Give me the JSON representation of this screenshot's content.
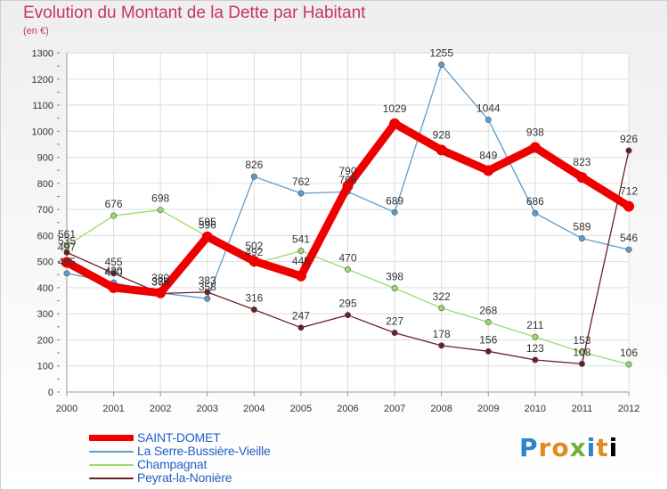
{
  "title": "Evolution du Montant de la Dette par Habitant",
  "subtitle": "(en €)",
  "logo": [
    "P",
    "r",
    "o",
    "x",
    "i",
    "t",
    "i"
  ],
  "chart_data": {
    "type": "line",
    "x": [
      "2000",
      "2001",
      "2002",
      "2003",
      "2004",
      "2005",
      "2006",
      "2007",
      "2008",
      "2009",
      "2010",
      "2011",
      "2012"
    ],
    "ylim": [
      0,
      1300
    ],
    "yticks": [
      0,
      100,
      200,
      300,
      400,
      500,
      600,
      700,
      800,
      900,
      1000,
      1100,
      1200,
      1300
    ],
    "grid": true,
    "legend_position": "bottom-left",
    "series": [
      {
        "name": "SAINT-DOMET",
        "color": "#ee0000",
        "values": [
          497,
          400,
          380,
          595,
          502,
          445,
          790,
          1029,
          928,
          849,
          938,
          823,
          712
        ]
      },
      {
        "name": "La Serre-Bussière-Vieille",
        "color": "#5c9ccc",
        "values": [
          455,
          420,
          380,
          358,
          826,
          762,
          768,
          689,
          1255,
          1044,
          686,
          589,
          546
        ]
      },
      {
        "name": "Champagnat",
        "color": "#99dd66",
        "values": [
          561,
          676,
          698,
          596,
          492,
          541,
          470,
          398,
          322,
          268,
          211,
          153,
          106
        ]
      },
      {
        "name": "Peyrat-la-Nonière",
        "color": "#6b1e24",
        "values": [
          535,
          455,
          378,
          383,
          316,
          247,
          295,
          227,
          178,
          156,
          123,
          108,
          926
        ]
      }
    ]
  }
}
